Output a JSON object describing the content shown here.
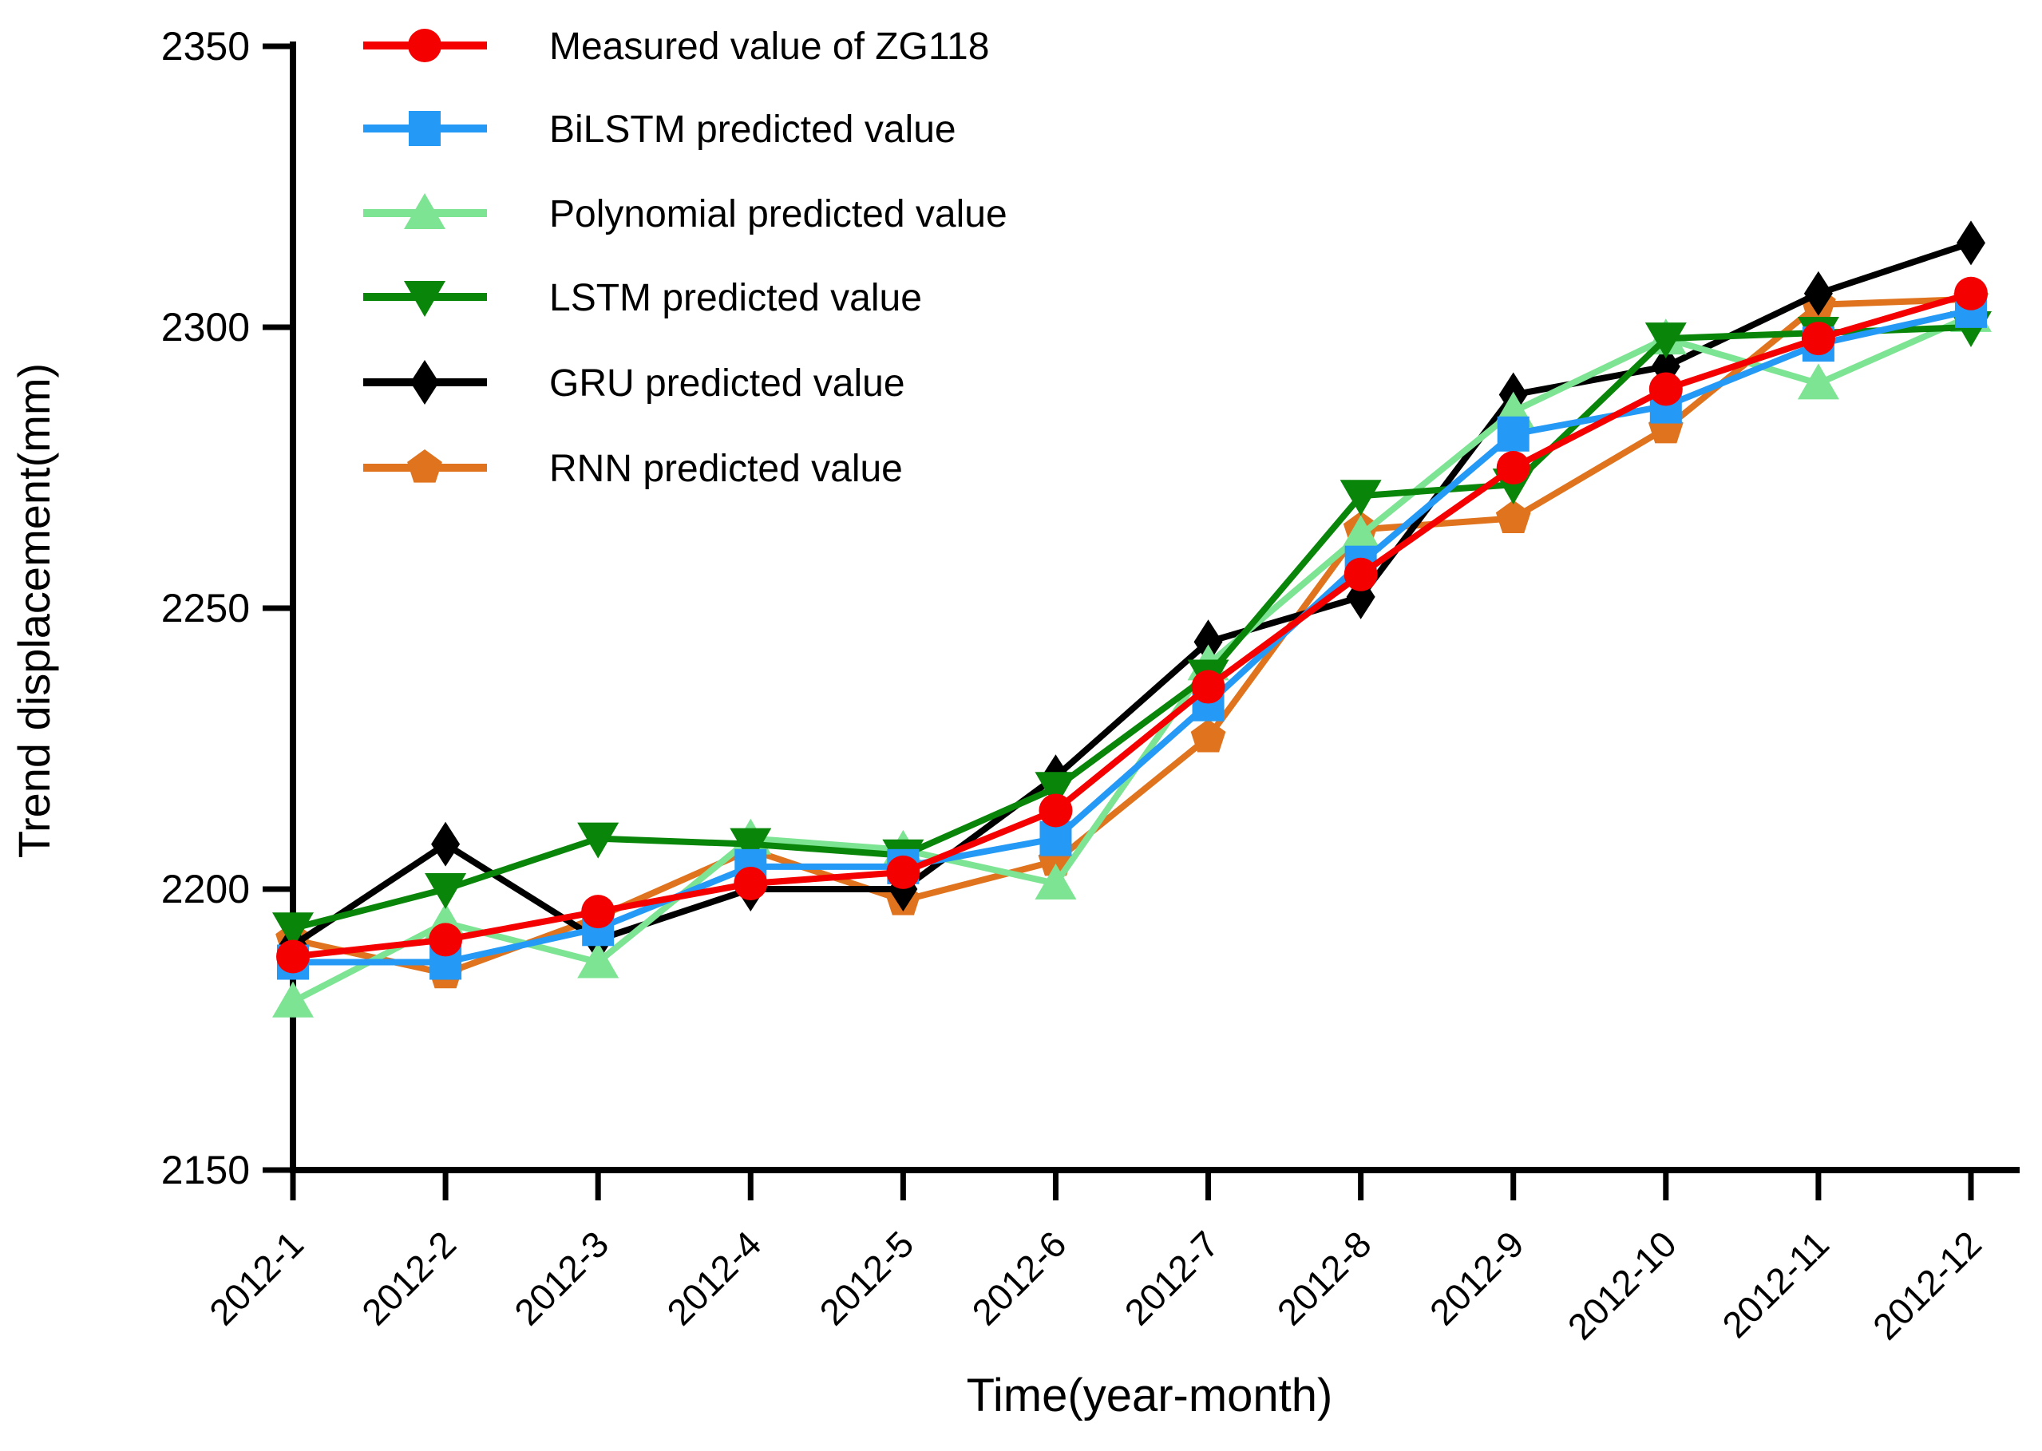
{
  "figure": {
    "xlabel": "Time(year-month)",
    "ylabel": "Trend displacement(mm)"
  },
  "chart_data": {
    "type": "line",
    "title": "",
    "xlabel": "Time(year-month)",
    "ylabel": "Trend displacement(mm)",
    "categories": [
      "2012-1",
      "2012-2",
      "2012-3",
      "2012-4",
      "2012-5",
      "2012-6",
      "2012-7",
      "2012-8",
      "2012-9",
      "2012-10",
      "2012-11",
      "2012-12"
    ],
    "ylim": [
      2150,
      2350
    ],
    "yticks": [
      2350,
      2300,
      2250,
      2200,
      2150
    ],
    "grid": false,
    "legend_position": "top-left",
    "axis_color": "#000000",
    "series": [
      {
        "name": "Measured value of ZG118",
        "marker": "circle",
        "color": "#f40000",
        "values": [
          2188,
          2191,
          2196,
          2201,
          2203,
          2214,
          2236,
          2256,
          2275,
          2289,
          2298,
          2306
        ]
      },
      {
        "name": "BiLSTM predicted value",
        "marker": "square",
        "color": "#2499f5",
        "values": [
          2187,
          2187,
          2193,
          2204,
          2204,
          2209,
          2233,
          2258,
          2281,
          2286,
          2297,
          2303
        ]
      },
      {
        "name": "Polynomial predicted value",
        "marker": "triangle-up",
        "color": "#7de493",
        "values": [
          2180,
          2194,
          2187,
          2209,
          2207,
          2201,
          2240,
          2263,
          2285,
          2298,
          2290,
          2302
        ]
      },
      {
        "name": "LSTM predicted value",
        "marker": "triangle-down",
        "color": "#098609",
        "values": [
          2193,
          2200,
          2209,
          2208,
          2206,
          2218,
          2238,
          2270,
          2272,
          2298,
          2299,
          2300
        ]
      },
      {
        "name": "GRU predicted value",
        "marker": "diamond",
        "color": "#000000",
        "values": [
          2190,
          2208,
          2191,
          2200,
          2200,
          2220,
          2244,
          2252,
          2288,
          2293,
          2306,
          2315
        ]
      },
      {
        "name": "RNN predicted value",
        "marker": "pentagon",
        "color": "#e0731d",
        "values": [
          2191,
          2185,
          2195,
          2207,
          2198,
          2205,
          2227,
          2264,
          2266,
          2282,
          2304,
          2305
        ]
      }
    ]
  }
}
